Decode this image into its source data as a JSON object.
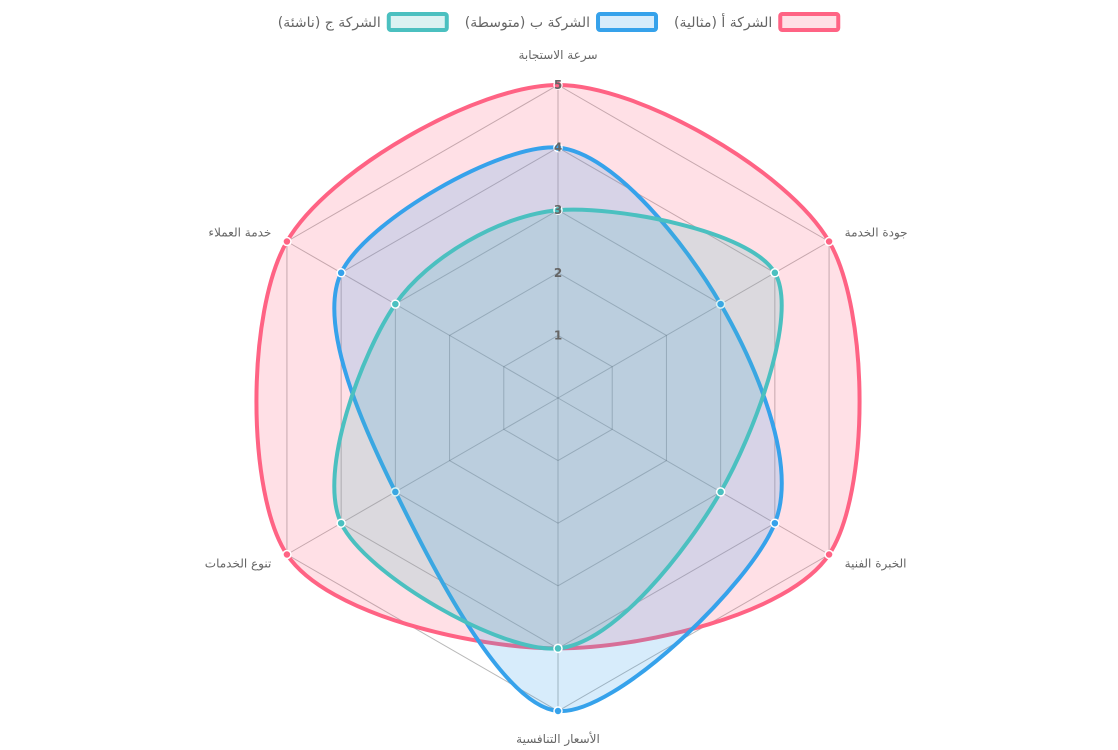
{
  "chart_data": {
    "type": "radar",
    "title": "",
    "axes": [
      "سرعة الاستجابة",
      "جودة الخدمة",
      "الخبرة الفنية",
      "الأسعار التنافسية",
      "تنوع الخدمات",
      "خدمة العملاء"
    ],
    "rlim": [
      0,
      5
    ],
    "ticks": [
      1,
      2,
      3,
      4,
      5
    ],
    "tick_labels": [
      "1",
      "2",
      "3",
      "4",
      "5"
    ],
    "grid": true,
    "legend": "top",
    "series": [
      {
        "name": "الشركة أ (مثالية)",
        "values": [
          5,
          5,
          5,
          4,
          5,
          5
        ],
        "color": "#ff6384",
        "fill": "#ff6384"
      },
      {
        "name": "الشركة ب (متوسطة)",
        "values": [
          4,
          3,
          4,
          5,
          3,
          4
        ],
        "color": "#36a2eb",
        "fill": "#36a2eb"
      },
      {
        "name": "الشركة ج (ناشئة)",
        "values": [
          3,
          4,
          3,
          4,
          4,
          3
        ],
        "color": "#4bc0c0",
        "fill": "#4bc0c0"
      }
    ]
  }
}
